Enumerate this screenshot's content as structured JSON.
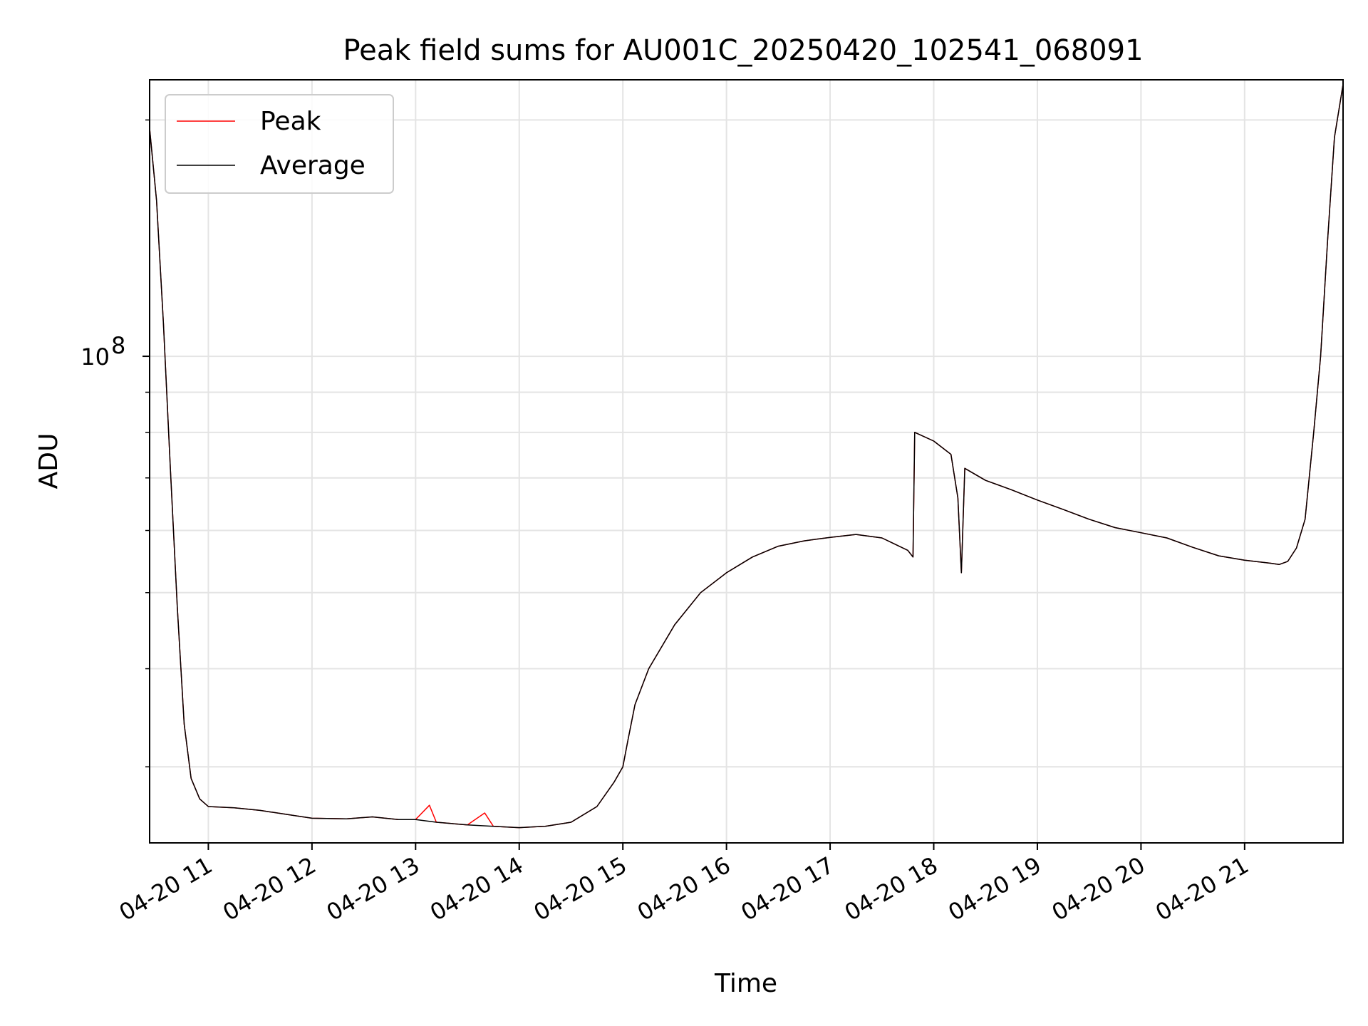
{
  "chart_data": {
    "type": "line",
    "title": "Peak field sums for AU001C_20250420_102541_068091",
    "xlabel": "Time",
    "ylabel": "ADU",
    "y_scale": "log",
    "y_tick_labels": [
      {
        "value": 100000000,
        "label": "10^8",
        "base": "10",
        "exponent": "8"
      }
    ],
    "ylim": [
      24000000,
      225000000
    ],
    "x_tick_labels": [
      "04-20 11",
      "04-20 12",
      "04-20 13",
      "04-20 14",
      "04-20 15",
      "04-20 16",
      "04-20 17",
      "04-20 18",
      "04-20 19",
      "04-20 20",
      "04-20 21"
    ],
    "x_tick_dates": [
      "2025-04-20 11:00",
      "2025-04-20 12:00",
      "2025-04-20 13:00",
      "2025-04-20 14:00",
      "2025-04-20 15:00",
      "2025-04-20 16:00",
      "2025-04-20 17:00",
      "2025-04-20 18:00",
      "2025-04-20 19:00",
      "2025-04-20 20:00",
      "2025-04-20 21:00"
    ],
    "xlim": [
      "2025-04-20 10:26",
      "2025-04-20 21:57"
    ],
    "grid": true,
    "legend_position": "top-left",
    "series": [
      {
        "name": "Peak",
        "color": "#ff0000",
        "points": [
          [
            "2025-04-20 10:26",
            195000000
          ],
          [
            "2025-04-20 10:30",
            158000000
          ],
          [
            "2025-04-20 10:34",
            110000000
          ],
          [
            "2025-04-20 10:38",
            72000000
          ],
          [
            "2025-04-20 10:42",
            48000000
          ],
          [
            "2025-04-20 10:46",
            34000000
          ],
          [
            "2025-04-20 10:50",
            29000000
          ],
          [
            "2025-04-20 10:55",
            27300000
          ],
          [
            "2025-04-20 11:00",
            26700000
          ],
          [
            "2025-04-20 11:15",
            26600000
          ],
          [
            "2025-04-20 11:30",
            26400000
          ],
          [
            "2025-04-20 11:45",
            26100000
          ],
          [
            "2025-04-20 12:00",
            25800000
          ],
          [
            "2025-04-20 12:20",
            25750000
          ],
          [
            "2025-04-20 12:35",
            25900000
          ],
          [
            "2025-04-20 12:50",
            25700000
          ],
          [
            "2025-04-20 13:00",
            25700000
          ],
          [
            "2025-04-20 13:08",
            26800000
          ],
          [
            "2025-04-20 13:12",
            25500000
          ],
          [
            "2025-04-20 13:30",
            25300000
          ],
          [
            "2025-04-20 13:40",
            26200000
          ],
          [
            "2025-04-20 13:45",
            25200000
          ],
          [
            "2025-04-20 14:00",
            25100000
          ],
          [
            "2025-04-20 14:15",
            25200000
          ],
          [
            "2025-04-20 14:30",
            25500000
          ],
          [
            "2025-04-20 14:45",
            26700000
          ],
          [
            "2025-04-20 14:55",
            28700000
          ],
          [
            "2025-04-20 15:00",
            30000000
          ],
          [
            "2025-04-20 15:03",
            32500000
          ],
          [
            "2025-04-20 15:07",
            36000000
          ],
          [
            "2025-04-20 15:15",
            40000000
          ],
          [
            "2025-04-20 15:30",
            45500000
          ],
          [
            "2025-04-20 15:45",
            50000000
          ],
          [
            "2025-04-20 16:00",
            53000000
          ],
          [
            "2025-04-20 16:15",
            55500000
          ],
          [
            "2025-04-20 16:30",
            57300000
          ],
          [
            "2025-04-20 16:45",
            58200000
          ],
          [
            "2025-04-20 17:00",
            58800000
          ],
          [
            "2025-04-20 17:15",
            59300000
          ],
          [
            "2025-04-20 17:30",
            58700000
          ],
          [
            "2025-04-20 17:45",
            56600000
          ],
          [
            "2025-04-20 17:48",
            55500000
          ],
          [
            "2025-04-20 17:49",
            80000000
          ],
          [
            "2025-04-20 18:00",
            78000000
          ],
          [
            "2025-04-20 18:10",
            75000000
          ],
          [
            "2025-04-20 18:14",
            66000000
          ],
          [
            "2025-04-20 18:16",
            53000000
          ],
          [
            "2025-04-20 18:18",
            72000000
          ],
          [
            "2025-04-20 18:30",
            69500000
          ],
          [
            "2025-04-20 18:45",
            67600000
          ],
          [
            "2025-04-20 19:00",
            65600000
          ],
          [
            "2025-04-20 19:15",
            63800000
          ],
          [
            "2025-04-20 19:30",
            62000000
          ],
          [
            "2025-04-20 19:45",
            60500000
          ],
          [
            "2025-04-20 20:00",
            59600000
          ],
          [
            "2025-04-20 20:15",
            58700000
          ],
          [
            "2025-04-20 20:30",
            57100000
          ],
          [
            "2025-04-20 20:45",
            55700000
          ],
          [
            "2025-04-20 21:00",
            55000000
          ],
          [
            "2025-04-20 21:15",
            54500000
          ],
          [
            "2025-04-20 21:20",
            54300000
          ],
          [
            "2025-04-20 21:25",
            54800000
          ],
          [
            "2025-04-20 21:30",
            57000000
          ],
          [
            "2025-04-20 21:35",
            62000000
          ],
          [
            "2025-04-20 21:40",
            80000000
          ],
          [
            "2025-04-20 21:44",
            100000000
          ],
          [
            "2025-04-20 21:48",
            140000000
          ],
          [
            "2025-04-20 21:52",
            190000000
          ],
          [
            "2025-04-20 21:57",
            222000000
          ]
        ]
      },
      {
        "name": "Average",
        "color": "#000000",
        "points": [
          [
            "2025-04-20 10:26",
            195000000
          ],
          [
            "2025-04-20 10:30",
            158000000
          ],
          [
            "2025-04-20 10:34",
            110000000
          ],
          [
            "2025-04-20 10:38",
            72000000
          ],
          [
            "2025-04-20 10:42",
            48000000
          ],
          [
            "2025-04-20 10:46",
            34000000
          ],
          [
            "2025-04-20 10:50",
            29000000
          ],
          [
            "2025-04-20 10:55",
            27300000
          ],
          [
            "2025-04-20 11:00",
            26700000
          ],
          [
            "2025-04-20 11:15",
            26600000
          ],
          [
            "2025-04-20 11:30",
            26400000
          ],
          [
            "2025-04-20 11:45",
            26100000
          ],
          [
            "2025-04-20 12:00",
            25800000
          ],
          [
            "2025-04-20 12:20",
            25750000
          ],
          [
            "2025-04-20 12:35",
            25900000
          ],
          [
            "2025-04-20 12:50",
            25700000
          ],
          [
            "2025-04-20 13:00",
            25700000
          ],
          [
            "2025-04-20 13:12",
            25500000
          ],
          [
            "2025-04-20 13:30",
            25300000
          ],
          [
            "2025-04-20 13:45",
            25200000
          ],
          [
            "2025-04-20 14:00",
            25100000
          ],
          [
            "2025-04-20 14:15",
            25200000
          ],
          [
            "2025-04-20 14:30",
            25500000
          ],
          [
            "2025-04-20 14:45",
            26700000
          ],
          [
            "2025-04-20 14:55",
            28700000
          ],
          [
            "2025-04-20 15:00",
            30000000
          ],
          [
            "2025-04-20 15:03",
            32500000
          ],
          [
            "2025-04-20 15:07",
            36000000
          ],
          [
            "2025-04-20 15:15",
            40000000
          ],
          [
            "2025-04-20 15:30",
            45500000
          ],
          [
            "2025-04-20 15:45",
            50000000
          ],
          [
            "2025-04-20 16:00",
            53000000
          ],
          [
            "2025-04-20 16:15",
            55500000
          ],
          [
            "2025-04-20 16:30",
            57300000
          ],
          [
            "2025-04-20 16:45",
            58200000
          ],
          [
            "2025-04-20 17:00",
            58800000
          ],
          [
            "2025-04-20 17:15",
            59300000
          ],
          [
            "2025-04-20 17:30",
            58700000
          ],
          [
            "2025-04-20 17:45",
            56600000
          ],
          [
            "2025-04-20 17:48",
            55500000
          ],
          [
            "2025-04-20 17:49",
            80000000
          ],
          [
            "2025-04-20 18:00",
            78000000
          ],
          [
            "2025-04-20 18:10",
            75000000
          ],
          [
            "2025-04-20 18:14",
            66000000
          ],
          [
            "2025-04-20 18:16",
            53000000
          ],
          [
            "2025-04-20 18:18",
            72000000
          ],
          [
            "2025-04-20 18:30",
            69500000
          ],
          [
            "2025-04-20 18:45",
            67600000
          ],
          [
            "2025-04-20 19:00",
            65600000
          ],
          [
            "2025-04-20 19:15",
            63800000
          ],
          [
            "2025-04-20 19:30",
            62000000
          ],
          [
            "2025-04-20 19:45",
            60500000
          ],
          [
            "2025-04-20 20:00",
            59600000
          ],
          [
            "2025-04-20 20:15",
            58700000
          ],
          [
            "2025-04-20 20:30",
            57100000
          ],
          [
            "2025-04-20 20:45",
            55700000
          ],
          [
            "2025-04-20 21:00",
            55000000
          ],
          [
            "2025-04-20 21:15",
            54500000
          ],
          [
            "2025-04-20 21:20",
            54300000
          ],
          [
            "2025-04-20 21:25",
            54800000
          ],
          [
            "2025-04-20 21:30",
            57000000
          ],
          [
            "2025-04-20 21:35",
            62000000
          ],
          [
            "2025-04-20 21:40",
            80000000
          ],
          [
            "2025-04-20 21:44",
            100000000
          ],
          [
            "2025-04-20 21:48",
            140000000
          ],
          [
            "2025-04-20 21:52",
            190000000
          ],
          [
            "2025-04-20 21:57",
            222000000
          ]
        ]
      }
    ]
  }
}
